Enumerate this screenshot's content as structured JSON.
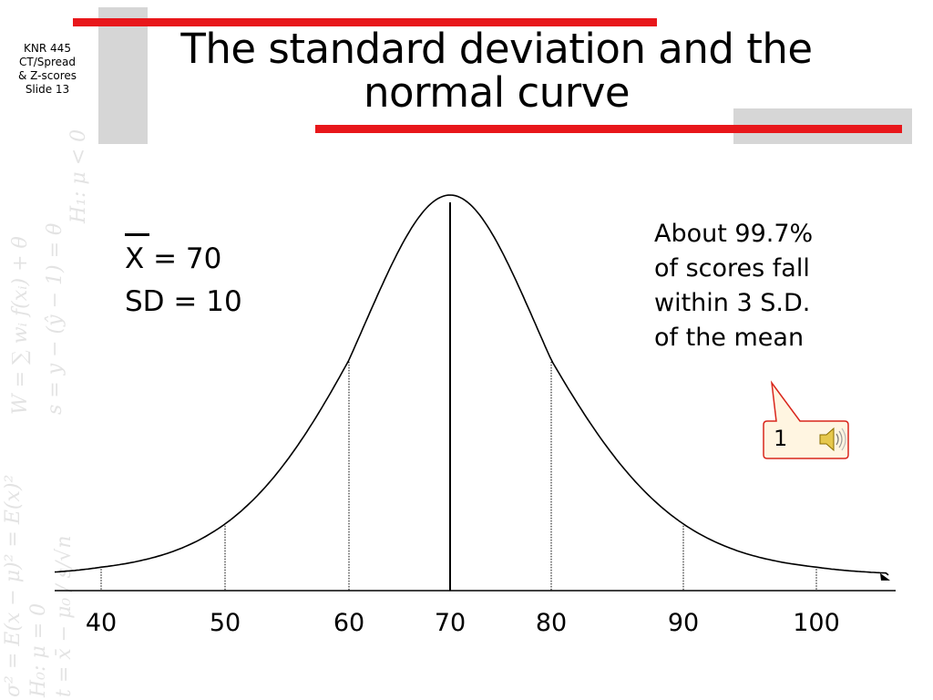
{
  "slide": {
    "course_label": [
      "KNR 445",
      "CT/Spread",
      "& Z-scores",
      "Slide 13"
    ],
    "title_lines": [
      "The standard deviation and the",
      "normal curve"
    ],
    "mean_label": "X = 70",
    "sd_label": "SD = 10",
    "note_lines": [
      "About 99.7%",
      "of scores fall",
      "within 3 S.D.",
      "of the mean"
    ],
    "callout_number": "1",
    "sound_icon": "speaker-icon",
    "watermark_formulas": [
      "H₁: μ < 0",
      "s = y − (ŷ − 1) = θ",
      "W = ∑ wᵢ f(xᵢ) + θ",
      "H₀: μ = 0",
      "t = x̄ − μ₀ / s/√n",
      "σ² = E(x − μ)² = E(x)²"
    ],
    "colors": {
      "accent_red": "#e8171b",
      "accent_gray": "#d6d6d6",
      "callout_fill": "#fff5e1",
      "callout_border": "#d9261c"
    }
  },
  "chart_data": {
    "type": "line",
    "series": [
      {
        "curve": "normal",
        "mean": 70,
        "sd": 10
      }
    ],
    "x_ticks": [
      40,
      50,
      60,
      70,
      80,
      90,
      100
    ],
    "xlim": [
      35,
      107
    ],
    "marked_lines": [
      40,
      50,
      60,
      70,
      80,
      90,
      100
    ],
    "xlabel": "",
    "ylabel": "",
    "title": "",
    "grid": false
  }
}
